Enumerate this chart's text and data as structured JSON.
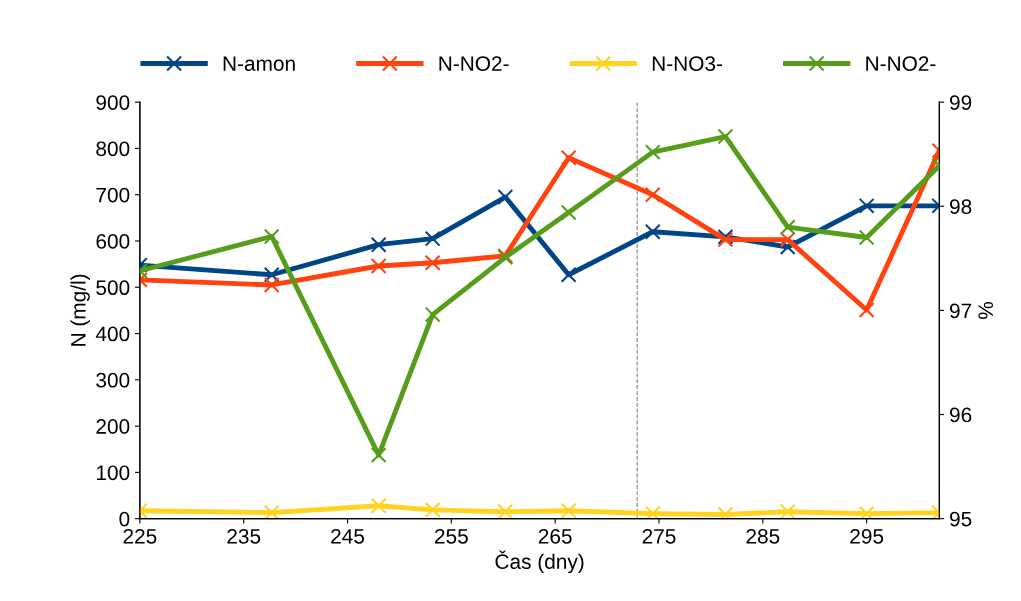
{
  "chart_data": {
    "type": "line",
    "xlabel": "Čas (dny)",
    "ylabel": "N (mg/l)",
    "y2label": "%",
    "x": [
      225,
      237.7,
      248,
      253.2,
      260.2,
      266.3,
      274.4,
      281.4,
      287.4,
      295,
      302
    ],
    "series": [
      {
        "name": "N-amon",
        "color": "#004586",
        "values": [
          548,
          527,
          592,
          605,
          695,
          527,
          620,
          609,
          587,
          676,
          676
        ]
      },
      {
        "name": "N-NO2-",
        "color": "#ff420e",
        "values": [
          516,
          505,
          546,
          553,
          568,
          780,
          700,
          603,
          603,
          451,
          795
        ]
      },
      {
        "name": "N-NO3-",
        "color": "#ffd320",
        "values": [
          17,
          13,
          28,
          19,
          15,
          17,
          11,
          9,
          15,
          11,
          13
        ]
      },
      {
        "name": "N-NO2-",
        "color": "#579d1c",
        "axis": "y2",
        "values": [
          97.38,
          97.71,
          95.61,
          96.96,
          97.51,
          97.94,
          98.52,
          98.67,
          97.8,
          97.7,
          98.39
        ]
      }
    ],
    "xlim": [
      225,
      302
    ],
    "xticks": [
      225,
      235,
      245,
      255,
      265,
      275,
      285,
      295
    ],
    "ylim": [
      0,
      900
    ],
    "yticks": [
      0,
      100,
      200,
      300,
      400,
      500,
      600,
      700,
      800,
      900
    ],
    "y2lim": [
      95,
      99
    ],
    "y2ticks": [
      95,
      96,
      97,
      98,
      99
    ],
    "ref_lines": [
      {
        "axis": "x",
        "value": 272.9,
        "color": "#808080",
        "line_style": "dashed"
      }
    ],
    "marker": "cross",
    "line_style": "solid",
    "grid": false,
    "legend": "top"
  }
}
